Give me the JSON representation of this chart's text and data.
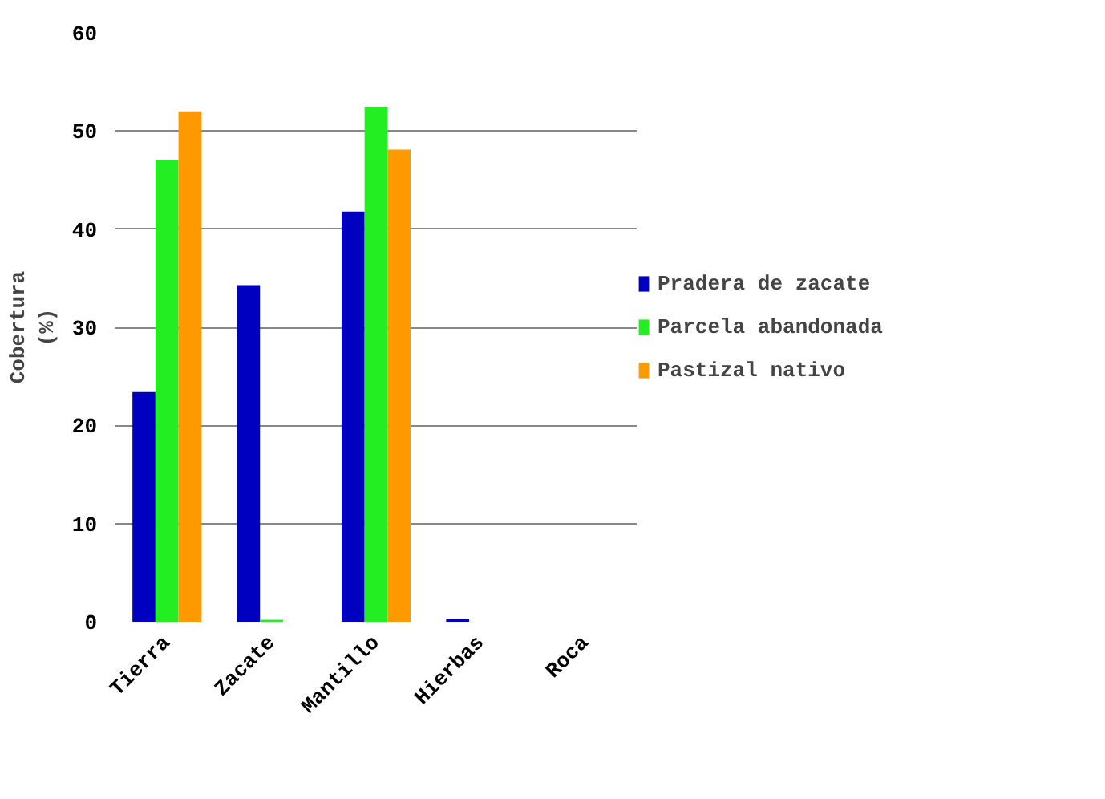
{
  "chart_data": {
    "type": "bar",
    "ylabel": "Cobertura\n(%)",
    "categories": [
      "Tierra",
      "Zacate",
      "Mantillo",
      "Hierbas",
      "Roca"
    ],
    "series": [
      {
        "name": "Pradera de zacate",
        "color": "#0000c0",
        "values": [
          23.4,
          34.3,
          41.8,
          0.3,
          0
        ]
      },
      {
        "name": "Parcela abandonada",
        "color": "#22ee22",
        "values": [
          47,
          0.2,
          52.4,
          0,
          0
        ]
      },
      {
        "name": "Pastizal nativo",
        "color": "#ff9900",
        "values": [
          52,
          0,
          48.1,
          0,
          0
        ]
      }
    ],
    "ylim": [
      0,
      60
    ],
    "yticks": [
      0,
      10,
      20,
      30,
      40,
      50,
      60
    ],
    "grid": "y",
    "legend": "right"
  }
}
